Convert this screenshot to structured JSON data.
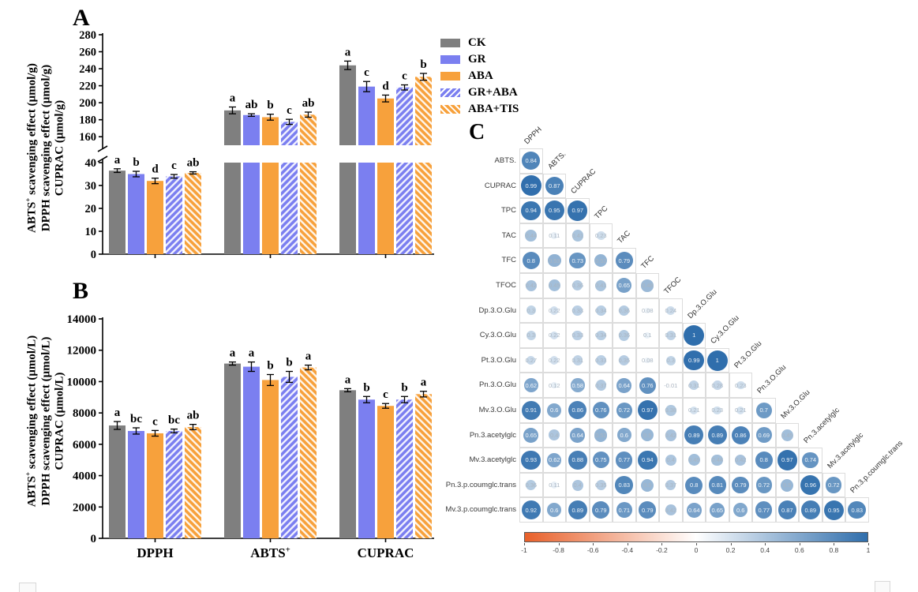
{
  "figure": {
    "panel_a_label": "A",
    "panel_b_label": "B",
    "panel_c_label": "C"
  },
  "legend": {
    "items": [
      {
        "label": "CK",
        "color": "#7f7f7f",
        "hatch": false,
        "hatch_dir": ""
      },
      {
        "label": "GR",
        "color": "#7b7ff0",
        "hatch": false,
        "hatch_dir": ""
      },
      {
        "label": "ABA",
        "color": "#f7a13c",
        "hatch": false,
        "hatch_dir": ""
      },
      {
        "label": "GR+ABA",
        "color": "#7b7ff0",
        "hatch": true,
        "hatch_dir": "/"
      },
      {
        "label": "ABA+TIS",
        "color": "#f7a13c",
        "hatch": true,
        "hatch_dir": "\\"
      }
    ]
  },
  "chart_data": [
    {
      "id": "panelA",
      "type": "bar",
      "title": "A",
      "ylabel_lines": [
        "ABTS+ scavenging effect (μmol/g)",
        "DPPH scavenging effect (μmol/g)",
        "CUPRAC (μmol/g)"
      ],
      "categories": [
        "DPPH",
        "ABTS+",
        "CUPRAC"
      ],
      "show_category_labels": false,
      "axis_break": true,
      "segments": [
        {
          "min": 0,
          "max": 40,
          "ticks": [
            0,
            10,
            20,
            30,
            40
          ]
        },
        {
          "min": 150,
          "max": 280,
          "ticks": [
            160,
            180,
            200,
            220,
            240,
            260,
            280
          ]
        }
      ],
      "series": [
        {
          "name": "CK",
          "values": [
            36.5,
            191.0,
            244.0
          ],
          "errors": [
            0.8,
            4.0,
            5.0
          ],
          "letters": [
            "a",
            "a",
            "a"
          ]
        },
        {
          "name": "GR",
          "values": [
            35.0,
            185.5,
            219.0
          ],
          "errors": [
            1.2,
            1.5,
            6.0
          ],
          "letters": [
            "b",
            "ab",
            "c"
          ]
        },
        {
          "name": "ABA",
          "values": [
            32.0,
            183.0,
            205.0
          ],
          "errors": [
            1.2,
            3.5,
            4.0
          ],
          "letters": [
            "d",
            "b",
            "d"
          ]
        },
        {
          "name": "GR+ABA",
          "values": [
            34.0,
            177.5,
            218.0
          ],
          "errors": [
            0.8,
            3.0,
            3.0
          ],
          "letters": [
            "c",
            "c",
            "c"
          ]
        },
        {
          "name": "ABA+TIS",
          "values": [
            35.5,
            186.0,
            230.5
          ],
          "errors": [
            0.5,
            3.0,
            4.0
          ],
          "letters": [
            "ab",
            "ab",
            "b"
          ]
        }
      ]
    },
    {
      "id": "panelB",
      "type": "bar",
      "title": "B",
      "ylabel_lines": [
        "ABTS+ scavenging effect (μmol/L)",
        "DPPH scavenging effect (μmol/L)",
        "CUPRAC (μmol/L)"
      ],
      "categories": [
        "DPPH",
        "ABTS+",
        "CUPRAC"
      ],
      "show_category_labels": true,
      "axis_break": false,
      "segments": [
        {
          "min": 0,
          "max": 14000,
          "ticks": [
            0,
            2000,
            4000,
            6000,
            8000,
            10000,
            12000,
            14000
          ]
        }
      ],
      "series": [
        {
          "name": "CK",
          "values": [
            7200,
            11150,
            9450
          ],
          "errors": [
            250,
            100,
            100
          ],
          "letters": [
            "a",
            "a",
            "a"
          ]
        },
        {
          "name": "GR",
          "values": [
            6850,
            10950,
            8850
          ],
          "errors": [
            200,
            300,
            200
          ],
          "letters": [
            "bc",
            "a",
            "b"
          ]
        },
        {
          "name": "ABA",
          "values": [
            6700,
            10100,
            8450
          ],
          "errors": [
            180,
            350,
            150
          ],
          "letters": [
            "c",
            "b",
            "c"
          ]
        },
        {
          "name": "GR+ABA",
          "values": [
            6850,
            10300,
            8850
          ],
          "errors": [
            120,
            350,
            200
          ],
          "letters": [
            "bc",
            "b",
            "b"
          ]
        },
        {
          "name": "ABA+TIS",
          "values": [
            7100,
            10900,
            9200
          ],
          "errors": [
            170,
            150,
            180
          ],
          "letters": [
            "ab",
            "a",
            "a"
          ]
        }
      ]
    },
    {
      "id": "panelC",
      "type": "heatmap",
      "title": "C",
      "subtype": "correlation-matrix-lower-triangle",
      "columns": [
        "DPPH",
        "ABTS.",
        "CUPRAC",
        "TPC",
        "TAC",
        "TFC",
        "TFOC",
        "Dp.3.O.Glu",
        "Cy.3.O.Glu",
        "Pt.3.O.Glu",
        "Pn.3.O.Glu",
        "Mv.3.O.Glu",
        "Pn.3.acetylglc",
        "Mv.3.acetylglc",
        "Pn.3.p.coumglc.trans"
      ],
      "rows": [
        {
          "label": "ABTS.",
          "values": [
            0.84
          ]
        },
        {
          "label": "CUPRAC",
          "values": [
            0.99,
            0.87
          ]
        },
        {
          "label": "TPC",
          "values": [
            0.94,
            0.95,
            0.97
          ]
        },
        {
          "label": "TAC",
          "values": [
            0.44,
            0.11,
            0.41,
            0.23
          ]
        },
        {
          "label": "TFC",
          "values": [
            0.8,
            0.53,
            0.73,
            0.52,
            0.79
          ]
        },
        {
          "label": "TFOC",
          "values": [
            0.42,
            0.45,
            0.36,
            0.41,
            0.65,
            0.48
          ]
        },
        {
          "label": "Dp.3.O.Glu",
          "values": [
            0.3,
            0.22,
            0.33,
            0.34,
            0.36,
            0.08,
            0.24
          ]
        },
        {
          "label": "Cy.3.O.Glu",
          "values": [
            0.3,
            0.22,
            0.33,
            0.34,
            0.36,
            0.1,
            0.31,
            1
          ]
        },
        {
          "label": "Pt.3.O.Glu",
          "values": [
            0.27,
            0.22,
            0.31,
            0.33,
            0.35,
            0.08,
            0.3,
            0.99,
            1
          ]
        },
        {
          "label": "Pn.3.O.Glu",
          "values": [
            0.62,
            0.12,
            0.58,
            0.37,
            0.64,
            0.76,
            -0.01,
            0.31,
            0.28,
            0.23
          ]
        },
        {
          "label": "Mv.3.O.Glu",
          "values": [
            0.91,
            0.6,
            0.86,
            0.76,
            0.72,
            0.97,
            0.38,
            0.21,
            0.23,
            0.21,
            0.7
          ]
        },
        {
          "label": "Pn.3.acetylglc",
          "values": [
            0.65,
            0.4,
            0.64,
            0.52,
            0.6,
            0.5,
            0.42,
            0.89,
            0.89,
            0.86,
            0.69,
            0.45
          ]
        },
        {
          "label": "Mv.3.acetylglc",
          "values": [
            0.93,
            0.62,
            0.88,
            0.75,
            0.77,
            0.94,
            0.4,
            0.45,
            0.44,
            0.42,
            0.8,
            0.97,
            0.74
          ]
        },
        {
          "label": "Pn.3.p.coumglc.trans",
          "values": [
            0.36,
            0.11,
            0.4,
            0.35,
            0.83,
            0.5,
            0.37,
            0.8,
            0.81,
            0.79,
            0.72,
            0.5,
            0.96,
            0.72
          ]
        },
        {
          "label": "Mv.3.p.coumglc.trans",
          "values": [
            0.92,
            0.6,
            0.89,
            0.79,
            0.71,
            0.79,
            0.42,
            0.64,
            0.65,
            0.6,
            0.77,
            0.87,
            0.89,
            0.95,
            0.83
          ]
        }
      ],
      "colorbar": {
        "min": -1,
        "max": 1,
        "ticks": [
          -1,
          -0.8,
          -0.6,
          -0.4,
          -0.2,
          0,
          0.2,
          0.4,
          0.6,
          0.8,
          1
        ],
        "negative_color": "#e8602a",
        "positive_color": "#2f6eac"
      }
    }
  ]
}
